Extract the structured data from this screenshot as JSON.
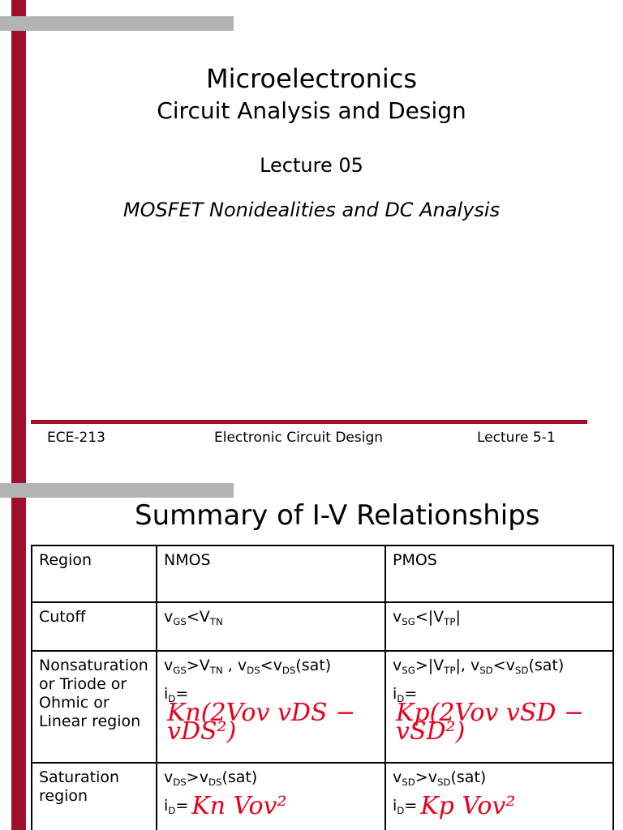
{
  "slide1": {
    "title": "Microelectronics",
    "subtitle": "Circuit Analysis and Design",
    "lecture": "Lecture 05",
    "topic": "MOSFET Nonidealities and DC Analysis",
    "footer": {
      "left": "ECE-213",
      "center": "Electronic Circuit Design",
      "right": "Lecture 5-1"
    }
  },
  "slide2": {
    "title": "Summary of I-V Relationships",
    "table": {
      "header": [
        "Region",
        "NMOS",
        "PMOS"
      ],
      "rows": [
        {
          "region": [
            "Cutoff"
          ],
          "nmos": [
            [
              "v",
              "GS",
              "<V",
              "TN"
            ]
          ],
          "pmos": [
            [
              "v",
              "SG",
              "<|V",
              "TP",
              "|"
            ]
          ]
        },
        {
          "region": [
            "Nonsaturation",
            "or Triode or",
            "Ohmic or",
            "Linear region"
          ],
          "nmos": [
            [
              "v",
              "GS",
              ">V",
              "TN",
              " , v",
              "DS",
              "<v",
              "DS",
              "(sat)"
            ],
            [
              "i",
              "D",
              "="
            ]
          ],
          "pmos": [
            [
              "v",
              "SG",
              ">|V",
              "TP",
              "|, v",
              "SD",
              "<v",
              "SD",
              "(sat)"
            ],
            [
              "i",
              "D",
              "="
            ]
          ],
          "nmos_note": "Kn(2Vov vDS − vDS²)",
          "pmos_note": "Kp(2Vov vSD − vSD²)"
        },
        {
          "region": [
            "Saturation",
            "region"
          ],
          "nmos": [
            [
              "v",
              "DS",
              ">v",
              "DS",
              "(sat)"
            ],
            [
              "i",
              "D",
              "="
            ]
          ],
          "pmos": [
            [
              "v",
              "SD",
              ">v",
              "SD",
              "(sat)"
            ],
            [
              "i",
              "D",
              "="
            ]
          ],
          "nmos_note": "Kn Vov²",
          "pmos_note": "Kp Vov²"
        }
      ]
    }
  }
}
